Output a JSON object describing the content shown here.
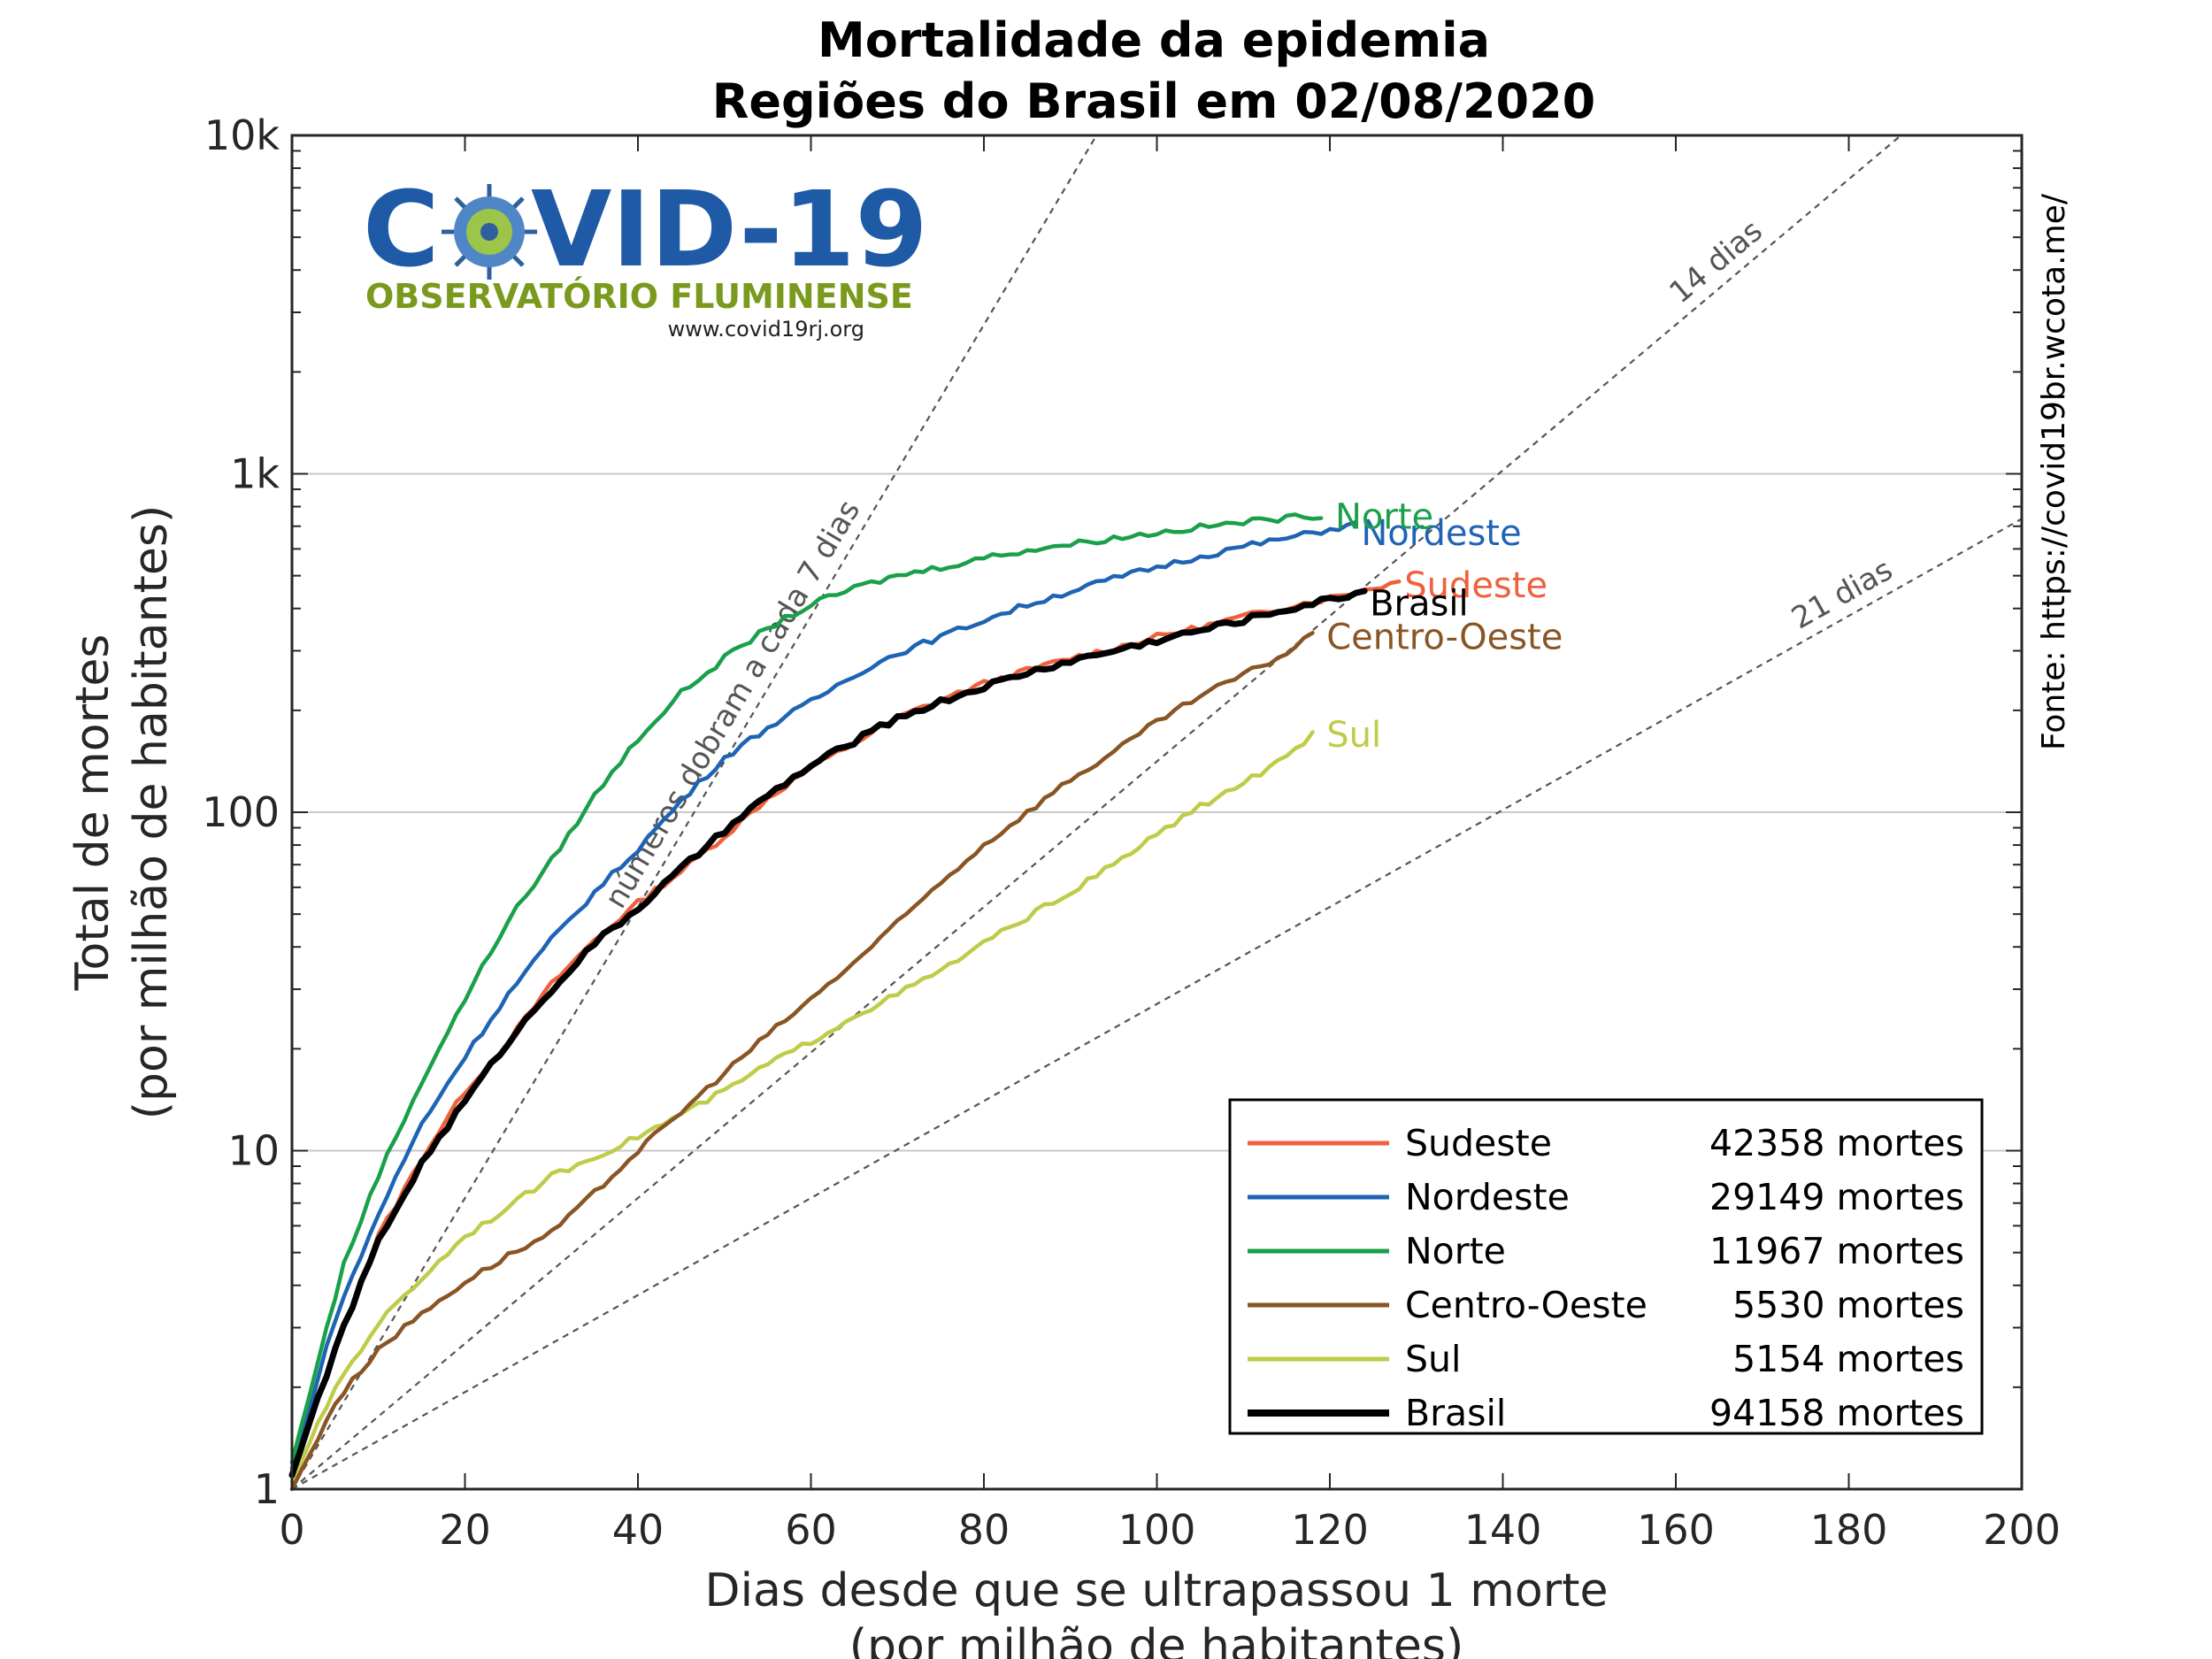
{
  "chart_data": {
    "type": "line",
    "title": [
      "Mortalidade da epidemia",
      "Regiões do Brasil em 02/08/2020"
    ],
    "xlabel": [
      "Dias desde que se ultrapassou 1 morte",
      "(por milhão de habitantes)"
    ],
    "ylabel": [
      "Total de mortes",
      "(por milhão de habitantes)"
    ],
    "xlim": [
      0,
      200
    ],
    "ylim": [
      1,
      10000
    ],
    "yscale": "log",
    "x_ticks": [
      0,
      20,
      40,
      60,
      80,
      100,
      120,
      140,
      160,
      180,
      200
    ],
    "y_ticks": [
      {
        "value": 1,
        "label": "1"
      },
      {
        "value": 10,
        "label": "10"
      },
      {
        "value": 100,
        "label": "100"
      },
      {
        "value": 1000,
        "label": "1k"
      },
      {
        "value": 10000,
        "label": "10k"
      }
    ],
    "grid": "horizontal major",
    "legend_position": "bottom-right",
    "source": "Fonte: https://covid19br.wcota.me/",
    "reference_lines": [
      {
        "label": "números dobram a cada 7 dias",
        "doubling_days": 7
      },
      {
        "label": "14 dias",
        "doubling_days": 14
      },
      {
        "label": "21 dias",
        "doubling_days": 21
      }
    ],
    "series": [
      {
        "name": "Sudeste",
        "deaths_label": "42358 mortes",
        "color": "#f0603c",
        "label_at": [
          128,
          470
        ],
        "points": [
          [
            0,
            1.1
          ],
          [
            5,
            2.6
          ],
          [
            10,
            5.6
          ],
          [
            15,
            9.5
          ],
          [
            20,
            15
          ],
          [
            25,
            21
          ],
          [
            30,
            31
          ],
          [
            35,
            42
          ],
          [
            40,
            54
          ],
          [
            45,
            67
          ],
          [
            50,
            85
          ],
          [
            55,
            110
          ],
          [
            60,
            135
          ],
          [
            65,
            160
          ],
          [
            70,
            190
          ],
          [
            75,
            215
          ],
          [
            80,
            240
          ],
          [
            85,
            262
          ],
          [
            90,
            285
          ],
          [
            95,
            305
          ],
          [
            100,
            330
          ],
          [
            105,
            352
          ],
          [
            110,
            378
          ],
          [
            115,
            405
          ],
          [
            120,
            430
          ],
          [
            125,
            460
          ],
          [
            128,
            480
          ]
        ]
      },
      {
        "name": "Nordeste",
        "deaths_label": "29149 mortes",
        "color": "#1f64b4",
        "label_at": [
          123,
          670
        ],
        "points": [
          [
            0,
            1.15
          ],
          [
            5,
            3.2
          ],
          [
            10,
            6.5
          ],
          [
            15,
            12
          ],
          [
            20,
            19
          ],
          [
            25,
            29
          ],
          [
            30,
            42
          ],
          [
            35,
            58
          ],
          [
            40,
            78
          ],
          [
            45,
            108
          ],
          [
            50,
            145
          ],
          [
            55,
            178
          ],
          [
            60,
            212
          ],
          [
            65,
            255
          ],
          [
            70,
            295
          ],
          [
            75,
            330
          ],
          [
            80,
            370
          ],
          [
            85,
            410
          ],
          [
            90,
            450
          ],
          [
            95,
            490
          ],
          [
            100,
            530
          ],
          [
            105,
            570
          ],
          [
            110,
            610
          ],
          [
            115,
            645
          ],
          [
            120,
            685
          ],
          [
            123,
            710
          ]
        ]
      },
      {
        "name": "Norte",
        "deaths_label": "11967 mortes",
        "color": "#1aa04a",
        "label_at": [
          120,
          750
        ],
        "points": [
          [
            0,
            1.2
          ],
          [
            3,
            2.4
          ],
          [
            6,
            4.6
          ],
          [
            10,
            8.5
          ],
          [
            15,
            16
          ],
          [
            20,
            28
          ],
          [
            25,
            48
          ],
          [
            30,
            72
          ],
          [
            35,
            112
          ],
          [
            40,
            165
          ],
          [
            45,
            225
          ],
          [
            50,
            285
          ],
          [
            55,
            350
          ],
          [
            60,
            410
          ],
          [
            65,
            460
          ],
          [
            70,
            500
          ],
          [
            75,
            530
          ],
          [
            80,
            565
          ],
          [
            85,
            595
          ],
          [
            90,
            620
          ],
          [
            95,
            645
          ],
          [
            100,
            670
          ],
          [
            105,
            695
          ],
          [
            110,
            720
          ],
          [
            115,
            740
          ],
          [
            119,
            755
          ]
        ]
      },
      {
        "name": "Centro-Oeste",
        "deaths_label": "5530 mortes",
        "color": "#8a5524",
        "label_at": [
          119,
          330
        ],
        "points": [
          [
            0,
            1.0
          ],
          [
            5,
            1.8
          ],
          [
            10,
            2.6
          ],
          [
            15,
            3.3
          ],
          [
            20,
            4.1
          ],
          [
            25,
            4.9
          ],
          [
            30,
            5.7
          ],
          [
            35,
            7.5
          ],
          [
            40,
            10
          ],
          [
            45,
            13
          ],
          [
            50,
            17
          ],
          [
            55,
            22
          ],
          [
            60,
            28
          ],
          [
            65,
            36
          ],
          [
            70,
            47
          ],
          [
            75,
            62
          ],
          [
            80,
            80
          ],
          [
            85,
            100
          ],
          [
            90,
            125
          ],
          [
            95,
            150
          ],
          [
            100,
            185
          ],
          [
            105,
            220
          ],
          [
            110,
            255
          ],
          [
            115,
            295
          ],
          [
            118,
            340
          ]
        ]
      },
      {
        "name": "Sul",
        "deaths_label": "5154 mortes",
        "color": "#bfcc4a",
        "label_at": [
          119,
          170
        ],
        "points": [
          [
            0,
            1.05
          ],
          [
            5,
            2.0
          ],
          [
            10,
            3.1
          ],
          [
            15,
            4.2
          ],
          [
            20,
            5.6
          ],
          [
            25,
            6.8
          ],
          [
            30,
            8.4
          ],
          [
            35,
            9.6
          ],
          [
            40,
            11
          ],
          [
            45,
            12.8
          ],
          [
            50,
            15
          ],
          [
            55,
            18
          ],
          [
            60,
            21
          ],
          [
            65,
            25
          ],
          [
            70,
            29
          ],
          [
            75,
            34
          ],
          [
            80,
            41
          ],
          [
            85,
            49
          ],
          [
            90,
            58
          ],
          [
            95,
            70
          ],
          [
            100,
            86
          ],
          [
            105,
            104
          ],
          [
            110,
            122
          ],
          [
            115,
            145
          ],
          [
            118,
            170
          ]
        ]
      },
      {
        "name": "Brasil",
        "deaths_label": "94158 mortes",
        "color": "#000000",
        "label_at": [
          124,
          415
        ],
        "bold": true,
        "points": [
          [
            0,
            1.1
          ],
          [
            5,
            2.6
          ],
          [
            10,
            5.4
          ],
          [
            15,
            9.2
          ],
          [
            20,
            14
          ],
          [
            25,
            21
          ],
          [
            30,
            30
          ],
          [
            35,
            41
          ],
          [
            40,
            52
          ],
          [
            45,
            68
          ],
          [
            50,
            88
          ],
          [
            55,
            112
          ],
          [
            60,
            137
          ],
          [
            65,
            162
          ],
          [
            70,
            190
          ],
          [
            75,
            212
          ],
          [
            80,
            235
          ],
          [
            85,
            258
          ],
          [
            90,
            280
          ],
          [
            95,
            300
          ],
          [
            100,
            322
          ],
          [
            105,
            345
          ],
          [
            110,
            370
          ],
          [
            115,
            398
          ],
          [
            120,
            425
          ],
          [
            124,
            450
          ]
        ]
      }
    ]
  },
  "logo": {
    "title_left": "C",
    "title_right": "VID-19",
    "subtitle": "OBSERVATÓRIO FLUMINENSE",
    "url": "www.covid19rj.org"
  }
}
